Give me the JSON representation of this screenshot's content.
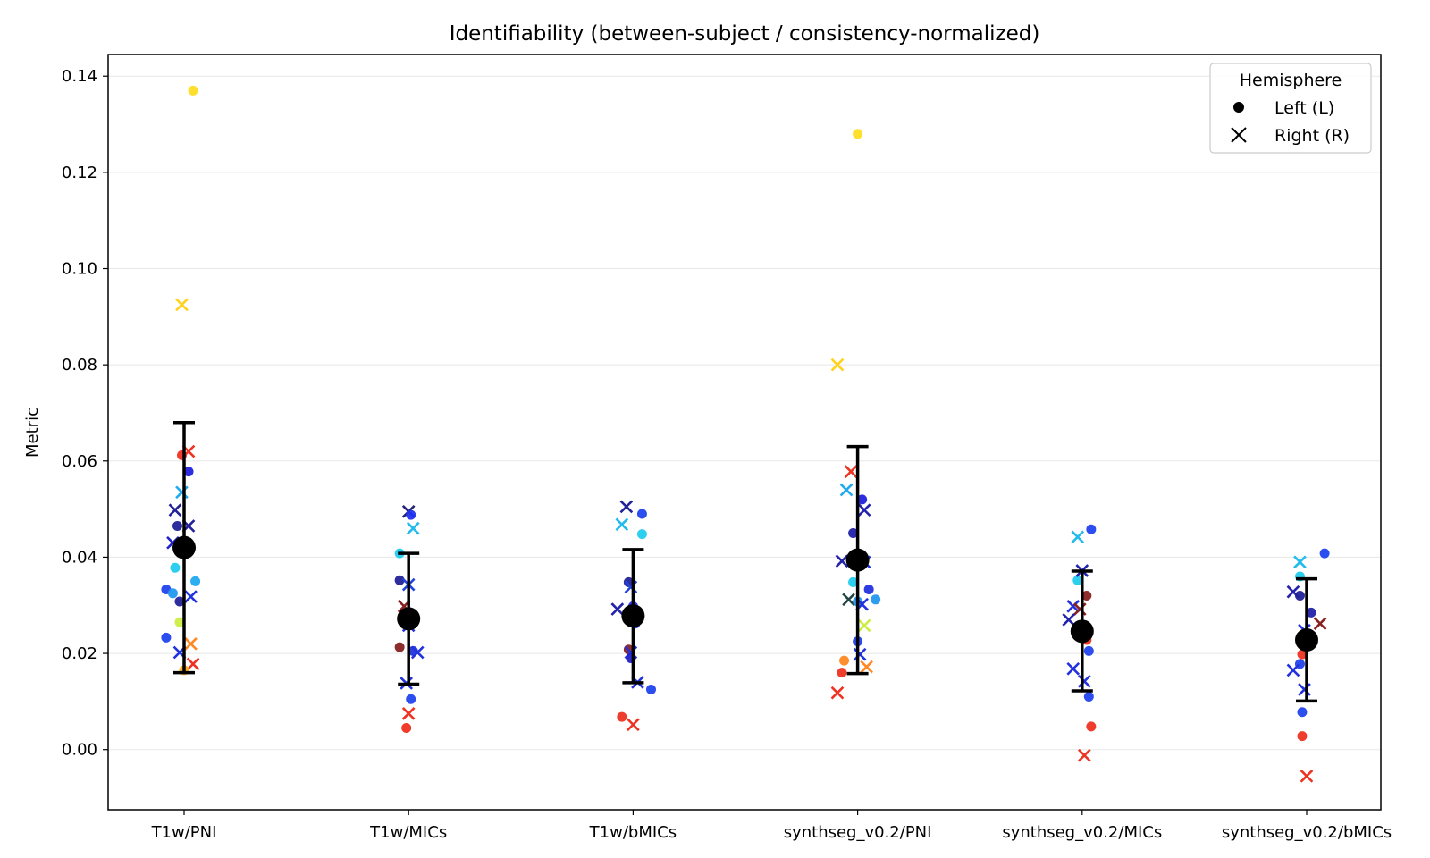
{
  "chart_data": {
    "type": "scatter",
    "title": "Identifiability (between-subject / consistency-normalized)",
    "xlabel": "",
    "ylabel": "Metric",
    "categories": [
      "T1w/PNI",
      "T1w/MICs",
      "T1w/bMICs",
      "synthseg_v0.2/PNI",
      "synthseg_v0.2/MICs",
      "synthseg_v0.2/bMICs"
    ],
    "ylim": [
      -0.0125,
      0.1445
    ],
    "yticks": [
      0.0,
      0.02,
      0.04,
      0.06,
      0.08,
      0.1,
      0.12,
      0.14
    ],
    "ytick_labels": [
      "0.00",
      "0.02",
      "0.04",
      "0.06",
      "0.08",
      "0.10",
      "0.12",
      "0.14"
    ],
    "grid": true,
    "legend": {
      "title": "Hemisphere",
      "placement": "top-right",
      "entries": [
        {
          "label": "Left (L)",
          "marker": "circle"
        },
        {
          "label": "Right (R)",
          "marker": "x"
        }
      ]
    },
    "summary": [
      {
        "category": "T1w/PNI",
        "mean": 0.042,
        "low": 0.016,
        "high": 0.068
      },
      {
        "category": "T1w/MICs",
        "mean": 0.0272,
        "low": 0.0136,
        "high": 0.0408
      },
      {
        "category": "T1w/bMICs",
        "mean": 0.0278,
        "low": 0.0139,
        "high": 0.0416
      },
      {
        "category": "synthseg_v0.2/PNI",
        "mean": 0.0394,
        "low": 0.0158,
        "high": 0.063
      },
      {
        "category": "synthseg_v0.2/MICs",
        "mean": 0.0246,
        "low": 0.0122,
        "high": 0.0371
      },
      {
        "category": "synthseg_v0.2/bMICs",
        "mean": 0.0228,
        "low": 0.0101,
        "high": 0.0355
      }
    ],
    "points": [
      {
        "c": 0,
        "dx": 0.04,
        "y": 0.137,
        "h": "L",
        "color": "#ffdd22"
      },
      {
        "c": 0,
        "dx": -0.01,
        "y": 0.0925,
        "h": "R",
        "color": "#ffd21e"
      },
      {
        "c": 0,
        "dx": -0.01,
        "y": 0.0612,
        "h": "L",
        "color": "#ee3322"
      },
      {
        "c": 0,
        "dx": 0.02,
        "y": 0.062,
        "h": "R",
        "color": "#ee3322"
      },
      {
        "c": 0,
        "dx": 0.02,
        "y": 0.0578,
        "h": "L",
        "color": "#2222dd"
      },
      {
        "c": 0,
        "dx": -0.01,
        "y": 0.0535,
        "h": "R",
        "color": "#22aaee"
      },
      {
        "c": 0,
        "dx": -0.04,
        "y": 0.0498,
        "h": "R",
        "color": "#222299"
      },
      {
        "c": 0,
        "dx": -0.03,
        "y": 0.0465,
        "h": "L",
        "color": "#222299"
      },
      {
        "c": 0,
        "dx": 0.02,
        "y": 0.0465,
        "h": "R",
        "color": "#222299"
      },
      {
        "c": 0,
        "dx": -0.05,
        "y": 0.043,
        "h": "R",
        "color": "#2222cc"
      },
      {
        "c": 0,
        "dx": -0.04,
        "y": 0.0378,
        "h": "L",
        "color": "#22ccee"
      },
      {
        "c": 0,
        "dx": 0.05,
        "y": 0.035,
        "h": "L",
        "color": "#22aaee"
      },
      {
        "c": 0,
        "dx": -0.08,
        "y": 0.0333,
        "h": "L",
        "color": "#2244ee"
      },
      {
        "c": 0,
        "dx": -0.05,
        "y": 0.0325,
        "h": "L",
        "color": "#2299ee"
      },
      {
        "c": 0,
        "dx": 0.03,
        "y": 0.0318,
        "h": "R",
        "color": "#2233dd"
      },
      {
        "c": 0,
        "dx": -0.02,
        "y": 0.0308,
        "h": "L",
        "color": "#222299"
      },
      {
        "c": 0,
        "dx": -0.02,
        "y": 0.0265,
        "h": "L",
        "color": "#ccee44"
      },
      {
        "c": 0,
        "dx": -0.08,
        "y": 0.0233,
        "h": "L",
        "color": "#2244ee"
      },
      {
        "c": 0,
        "dx": 0.03,
        "y": 0.022,
        "h": "R",
        "color": "#ff8822"
      },
      {
        "c": 0,
        "dx": -0.02,
        "y": 0.0202,
        "h": "R",
        "color": "#2233dd"
      },
      {
        "c": 0,
        "dx": 0.04,
        "y": 0.0178,
        "h": "R",
        "color": "#ee3322"
      },
      {
        "c": 0,
        "dx": 0.0,
        "y": 0.0165,
        "h": "L",
        "color": "#ffaa22"
      },
      {
        "c": 1,
        "dx": 0.0,
        "y": 0.0495,
        "h": "R",
        "color": "#222277"
      },
      {
        "c": 1,
        "dx": 0.01,
        "y": 0.0488,
        "h": "L",
        "color": "#2233ee"
      },
      {
        "c": 1,
        "dx": 0.02,
        "y": 0.046,
        "h": "R",
        "color": "#22bbee"
      },
      {
        "c": 1,
        "dx": -0.04,
        "y": 0.0408,
        "h": "L",
        "color": "#22ccee"
      },
      {
        "c": 1,
        "dx": -0.04,
        "y": 0.0352,
        "h": "L",
        "color": "#222299"
      },
      {
        "c": 1,
        "dx": 0.0,
        "y": 0.0343,
        "h": "R",
        "color": "#2244dd"
      },
      {
        "c": 1,
        "dx": -0.02,
        "y": 0.0298,
        "h": "R",
        "color": "#882222"
      },
      {
        "c": 1,
        "dx": 0.0,
        "y": 0.0258,
        "h": "R",
        "color": "#2233dd"
      },
      {
        "c": 1,
        "dx": 0.02,
        "y": 0.0262,
        "h": "L",
        "color": "#2222cc"
      },
      {
        "c": 1,
        "dx": -0.04,
        "y": 0.0213,
        "h": "L",
        "color": "#882222"
      },
      {
        "c": 1,
        "dx": 0.02,
        "y": 0.0205,
        "h": "L",
        "color": "#2233dd"
      },
      {
        "c": 1,
        "dx": 0.04,
        "y": 0.0202,
        "h": "R",
        "color": "#2233dd"
      },
      {
        "c": 1,
        "dx": -0.01,
        "y": 0.0138,
        "h": "R",
        "color": "#2233dd"
      },
      {
        "c": 1,
        "dx": 0.01,
        "y": 0.0105,
        "h": "L",
        "color": "#2244ee"
      },
      {
        "c": 1,
        "dx": 0.0,
        "y": 0.0075,
        "h": "R",
        "color": "#ee3322"
      },
      {
        "c": 1,
        "dx": -0.01,
        "y": 0.0045,
        "h": "L",
        "color": "#ee3322"
      },
      {
        "c": 2,
        "dx": -0.03,
        "y": 0.0505,
        "h": "R",
        "color": "#222299"
      },
      {
        "c": 2,
        "dx": 0.04,
        "y": 0.049,
        "h": "L",
        "color": "#2244ee"
      },
      {
        "c": 2,
        "dx": -0.05,
        "y": 0.0468,
        "h": "R",
        "color": "#22bbee"
      },
      {
        "c": 2,
        "dx": 0.04,
        "y": 0.0448,
        "h": "L",
        "color": "#22ccee"
      },
      {
        "c": 2,
        "dx": -0.02,
        "y": 0.0348,
        "h": "L",
        "color": "#222299"
      },
      {
        "c": 2,
        "dx": -0.01,
        "y": 0.0338,
        "h": "R",
        "color": "#2244dd"
      },
      {
        "c": 2,
        "dx": -0.07,
        "y": 0.0292,
        "h": "R",
        "color": "#2222aa"
      },
      {
        "c": 2,
        "dx": 0.0,
        "y": 0.0298,
        "h": "L",
        "color": "#2233ee"
      },
      {
        "c": 2,
        "dx": 0.01,
        "y": 0.0262,
        "h": "L",
        "color": "#2244ee"
      },
      {
        "c": 2,
        "dx": -0.02,
        "y": 0.0208,
        "h": "L",
        "color": "#882222"
      },
      {
        "c": 2,
        "dx": -0.01,
        "y": 0.0202,
        "h": "R",
        "color": "#2233dd"
      },
      {
        "c": 2,
        "dx": -0.01,
        "y": 0.019,
        "h": "L",
        "color": "#2222cc"
      },
      {
        "c": 2,
        "dx": 0.02,
        "y": 0.014,
        "h": "R",
        "color": "#2233dd"
      },
      {
        "c": 2,
        "dx": 0.08,
        "y": 0.0125,
        "h": "L",
        "color": "#2244ee"
      },
      {
        "c": 2,
        "dx": -0.05,
        "y": 0.0068,
        "h": "L",
        "color": "#ee3322"
      },
      {
        "c": 2,
        "dx": 0.0,
        "y": 0.0052,
        "h": "R",
        "color": "#ee3322"
      },
      {
        "c": 3,
        "dx": 0.0,
        "y": 0.128,
        "h": "L",
        "color": "#ffdd22"
      },
      {
        "c": 3,
        "dx": -0.09,
        "y": 0.08,
        "h": "R",
        "color": "#ffd21e"
      },
      {
        "c": 3,
        "dx": -0.03,
        "y": 0.0578,
        "h": "R",
        "color": "#ee3322"
      },
      {
        "c": 3,
        "dx": -0.05,
        "y": 0.054,
        "h": "R",
        "color": "#22aaee"
      },
      {
        "c": 3,
        "dx": 0.02,
        "y": 0.052,
        "h": "L",
        "color": "#2222dd"
      },
      {
        "c": 3,
        "dx": 0.03,
        "y": 0.0498,
        "h": "R",
        "color": "#2222aa"
      },
      {
        "c": 3,
        "dx": -0.02,
        "y": 0.045,
        "h": "L",
        "color": "#2222aa"
      },
      {
        "c": 3,
        "dx": -0.07,
        "y": 0.0392,
        "h": "R",
        "color": "#2222aa"
      },
      {
        "c": 3,
        "dx": 0.03,
        "y": 0.039,
        "h": "R",
        "color": "#2233dd"
      },
      {
        "c": 3,
        "dx": -0.02,
        "y": 0.0348,
        "h": "L",
        "color": "#22ccee"
      },
      {
        "c": 3,
        "dx": 0.05,
        "y": 0.0333,
        "h": "L",
        "color": "#2233dd"
      },
      {
        "c": 3,
        "dx": -0.04,
        "y": 0.0312,
        "h": "R",
        "color": "#224444"
      },
      {
        "c": 3,
        "dx": 0.08,
        "y": 0.0312,
        "h": "L",
        "color": "#2299ee"
      },
      {
        "c": 3,
        "dx": 0.0,
        "y": 0.0308,
        "h": "L",
        "color": "#2299ee"
      },
      {
        "c": 3,
        "dx": 0.02,
        "y": 0.0302,
        "h": "R",
        "color": "#2233dd"
      },
      {
        "c": 3,
        "dx": 0.03,
        "y": 0.0258,
        "h": "R",
        "color": "#ccee44"
      },
      {
        "c": 3,
        "dx": 0.0,
        "y": 0.0225,
        "h": "L",
        "color": "#2244ee"
      },
      {
        "c": 3,
        "dx": 0.01,
        "y": 0.0198,
        "h": "R",
        "color": "#2233dd"
      },
      {
        "c": 3,
        "dx": -0.06,
        "y": 0.0185,
        "h": "L",
        "color": "#ff8822"
      },
      {
        "c": 3,
        "dx": 0.04,
        "y": 0.0172,
        "h": "R",
        "color": "#ff8822"
      },
      {
        "c": 3,
        "dx": -0.07,
        "y": 0.016,
        "h": "L",
        "color": "#ee3322"
      },
      {
        "c": 3,
        "dx": -0.09,
        "y": 0.0118,
        "h": "R",
        "color": "#ee3322"
      },
      {
        "c": 4,
        "dx": -0.02,
        "y": 0.0442,
        "h": "R",
        "color": "#22bbee"
      },
      {
        "c": 4,
        "dx": 0.04,
        "y": 0.0458,
        "h": "L",
        "color": "#2244ee"
      },
      {
        "c": 4,
        "dx": -0.02,
        "y": 0.0352,
        "h": "L",
        "color": "#22ccee"
      },
      {
        "c": 4,
        "dx": 0.0,
        "y": 0.0372,
        "h": "R",
        "color": "#2222aa"
      },
      {
        "c": 4,
        "dx": 0.02,
        "y": 0.032,
        "h": "L",
        "color": "#882222"
      },
      {
        "c": 4,
        "dx": -0.04,
        "y": 0.0298,
        "h": "R",
        "color": "#2233dd"
      },
      {
        "c": 4,
        "dx": -0.01,
        "y": 0.0292,
        "h": "R",
        "color": "#882222"
      },
      {
        "c": 4,
        "dx": -0.06,
        "y": 0.027,
        "h": "R",
        "color": "#2222aa"
      },
      {
        "c": 4,
        "dx": 0.02,
        "y": 0.0228,
        "h": "L",
        "color": "#ee3322"
      },
      {
        "c": 4,
        "dx": 0.03,
        "y": 0.0205,
        "h": "L",
        "color": "#2244ee"
      },
      {
        "c": 4,
        "dx": -0.04,
        "y": 0.0168,
        "h": "R",
        "color": "#2233dd"
      },
      {
        "c": 4,
        "dx": 0.01,
        "y": 0.0142,
        "h": "R",
        "color": "#2233dd"
      },
      {
        "c": 4,
        "dx": 0.03,
        "y": 0.011,
        "h": "L",
        "color": "#2244ee"
      },
      {
        "c": 4,
        "dx": 0.04,
        "y": 0.0048,
        "h": "L",
        "color": "#ee3322"
      },
      {
        "c": 4,
        "dx": 0.01,
        "y": -0.0012,
        "h": "R",
        "color": "#ee3322"
      },
      {
        "c": 5,
        "dx": -0.03,
        "y": 0.039,
        "h": "R",
        "color": "#22bbee"
      },
      {
        "c": 5,
        "dx": 0.08,
        "y": 0.0408,
        "h": "L",
        "color": "#2244ee"
      },
      {
        "c": 5,
        "dx": -0.03,
        "y": 0.036,
        "h": "L",
        "color": "#22ccee"
      },
      {
        "c": 5,
        "dx": -0.06,
        "y": 0.0328,
        "h": "R",
        "color": "#2222aa"
      },
      {
        "c": 5,
        "dx": -0.03,
        "y": 0.032,
        "h": "L",
        "color": "#222299"
      },
      {
        "c": 5,
        "dx": 0.02,
        "y": 0.0285,
        "h": "L",
        "color": "#2222aa"
      },
      {
        "c": 5,
        "dx": 0.06,
        "y": 0.0262,
        "h": "R",
        "color": "#882222"
      },
      {
        "c": 5,
        "dx": -0.01,
        "y": 0.0248,
        "h": "R",
        "color": "#2233dd"
      },
      {
        "c": 5,
        "dx": -0.02,
        "y": 0.0198,
        "h": "L",
        "color": "#ee3322"
      },
      {
        "c": 5,
        "dx": -0.03,
        "y": 0.0178,
        "h": "L",
        "color": "#2244ee"
      },
      {
        "c": 5,
        "dx": -0.06,
        "y": 0.0165,
        "h": "R",
        "color": "#2233dd"
      },
      {
        "c": 5,
        "dx": -0.01,
        "y": 0.0125,
        "h": "R",
        "color": "#2233dd"
      },
      {
        "c": 5,
        "dx": -0.02,
        "y": 0.0078,
        "h": "L",
        "color": "#2244ee"
      },
      {
        "c": 5,
        "dx": -0.02,
        "y": 0.0028,
        "h": "L",
        "color": "#ee3322"
      },
      {
        "c": 5,
        "dx": 0.0,
        "y": -0.0055,
        "h": "R",
        "color": "#ee3322"
      }
    ]
  }
}
